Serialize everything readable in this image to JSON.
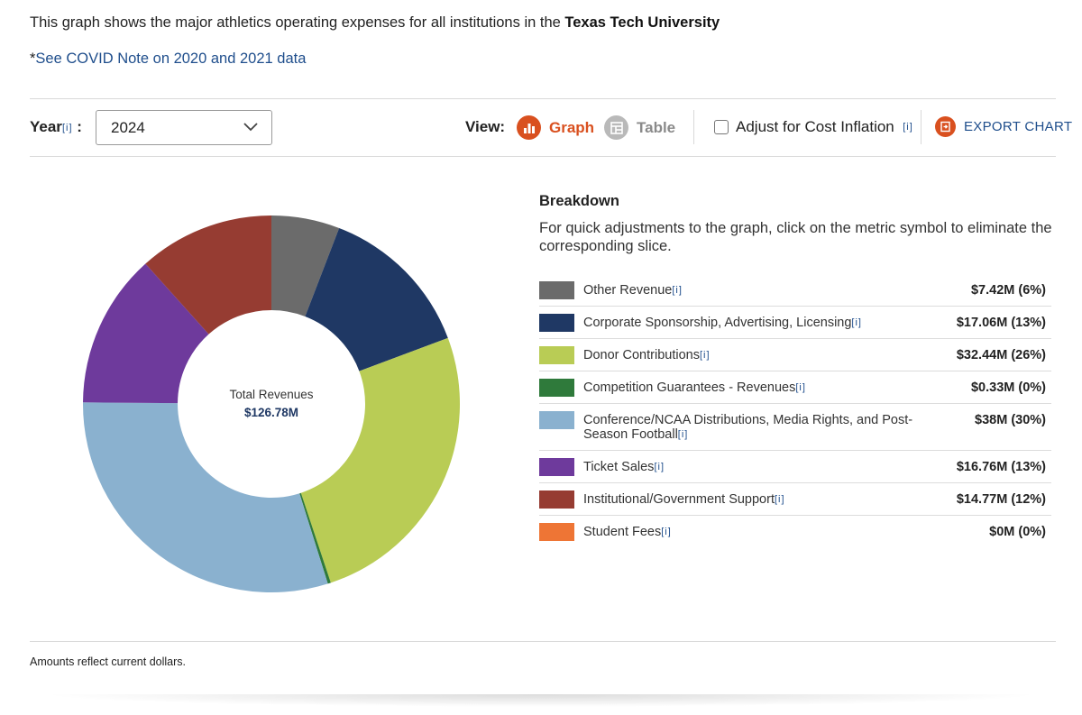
{
  "intro": {
    "prefix": "This graph shows the major athletics operating expenses for all institutions in the ",
    "institution": "Texas Tech University"
  },
  "covid": {
    "asterisk": "*",
    "link": "See COVID Note on 2020 and 2021 data"
  },
  "controls": {
    "year_label": "Year",
    "info_marker": "[i]",
    "colon": ":",
    "year_value": "2024",
    "view_label": "View:",
    "graph_label": "Graph",
    "table_label": "Table",
    "inflation_label": "Adjust for Cost Inflation",
    "export_label": "EXPORT CHART"
  },
  "breakdown": {
    "title": "Breakdown",
    "description": "For quick adjustments to the graph, click on the metric symbol to eliminate the corresponding slice."
  },
  "footer": {
    "note": "Amounts reflect current dollars."
  },
  "colors": {
    "accent": "#d9501f",
    "link": "#1f4e8c"
  },
  "chart_data": {
    "type": "pie",
    "variant": "donut",
    "title": "",
    "center_label": "Total Revenues",
    "center_value": "$126.78M",
    "start": "12 o'clock, clockwise",
    "slices": [
      {
        "name": "Other Revenue",
        "value": 7.42,
        "display": "$7.42M (6%)",
        "color": "#6b6b6b"
      },
      {
        "name": "Corporate Sponsorship, Advertising, Licensing",
        "value": 17.06,
        "display": "$17.06M (13%)",
        "color": "#1f3864"
      },
      {
        "name": "Donor Contributions",
        "value": 32.44,
        "display": "$32.44M (26%)",
        "color": "#b9cc55"
      },
      {
        "name": "Competition Guarantees - Revenues",
        "value": 0.33,
        "display": "$0.33M (0%)",
        "color": "#2f7a3b"
      },
      {
        "name": "Conference/NCAA Distributions, Media Rights, and Post-Season Football",
        "value": 38,
        "display": "$38M (30%)",
        "color": "#8ab1cf"
      },
      {
        "name": "Ticket Sales",
        "value": 16.76,
        "display": "$16.76M (13%)",
        "color": "#6e3a9c"
      },
      {
        "name": "Institutional/Government Support",
        "value": 14.77,
        "display": "$14.77M (12%)",
        "color": "#963c32"
      },
      {
        "name": "Student Fees",
        "value": 0,
        "display": "$0M (0%)",
        "color": "#ee7535"
      }
    ]
  }
}
